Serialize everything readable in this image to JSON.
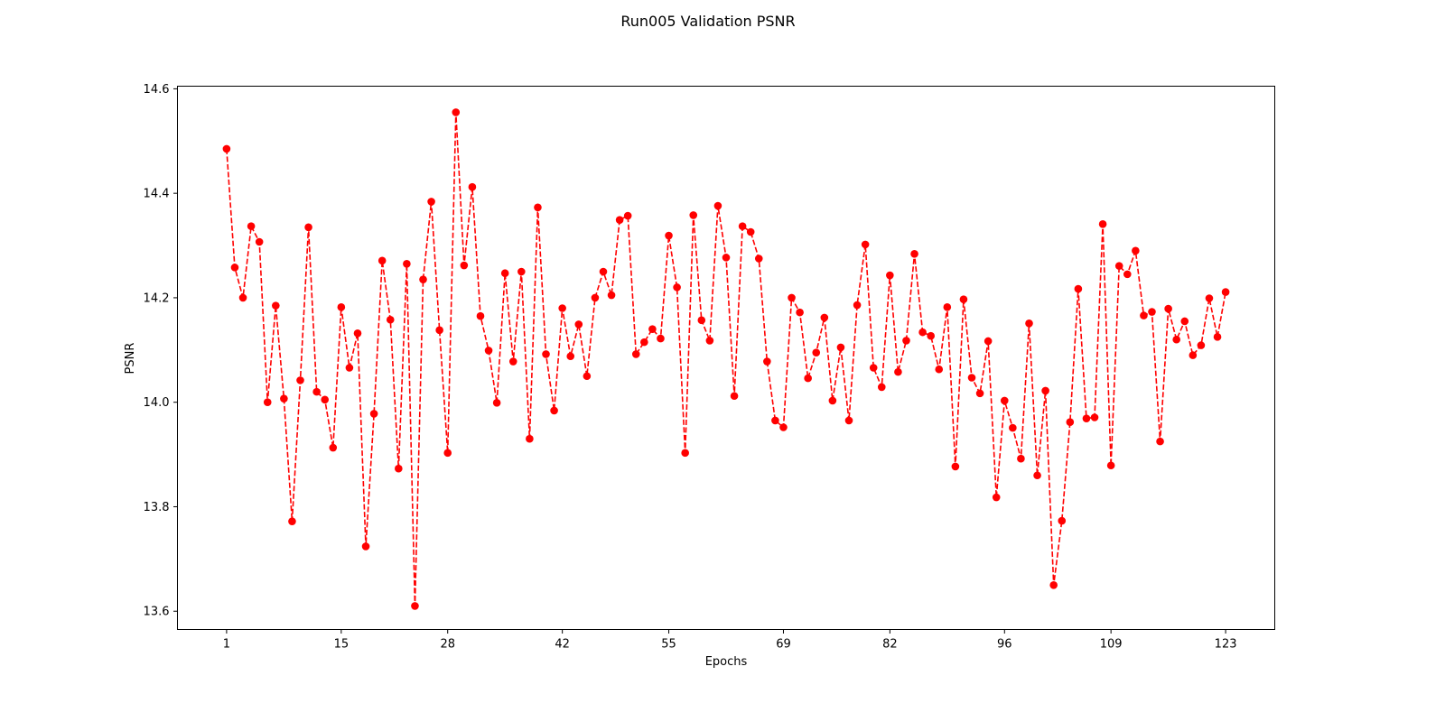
{
  "chart_data": {
    "type": "line",
    "title": "Run005 Validation PSNR",
    "xlabel": "Epochs",
    "ylabel": "PSNR",
    "xlim": [
      -5,
      129
    ],
    "ylim": [
      13.565,
      14.605
    ],
    "xticks": [
      1,
      15,
      28,
      42,
      55,
      69,
      82,
      96,
      109,
      123
    ],
    "yticks": [
      13.6,
      13.8,
      14.0,
      14.2,
      14.4,
      14.6
    ],
    "ytick_labels": [
      "13.6",
      "13.8",
      "14.0",
      "14.2",
      "14.4",
      "14.6"
    ],
    "grid": false,
    "series": [
      {
        "color": "#ff0000",
        "line_style": "dashed",
        "marker": "circle",
        "x": [
          1,
          2,
          3,
          4,
          5,
          6,
          7,
          8,
          9,
          10,
          11,
          12,
          13,
          14,
          15,
          16,
          17,
          18,
          19,
          20,
          21,
          22,
          23,
          24,
          25,
          26,
          27,
          28,
          29,
          30,
          31,
          32,
          33,
          34,
          35,
          36,
          37,
          38,
          39,
          40,
          41,
          42,
          43,
          44,
          45,
          46,
          47,
          48,
          49,
          50,
          51,
          52,
          53,
          54,
          55,
          56,
          57,
          58,
          59,
          60,
          61,
          62,
          63,
          64,
          65,
          66,
          67,
          68,
          69,
          70,
          71,
          72,
          73,
          74,
          75,
          76,
          77,
          78,
          79,
          80,
          81,
          82,
          83,
          84,
          85,
          86,
          87,
          88,
          89,
          90,
          91,
          92,
          93,
          94,
          95,
          96,
          97,
          98,
          99,
          100,
          101,
          102,
          103,
          104,
          105,
          106,
          107,
          108,
          109,
          110,
          111,
          112,
          113,
          114,
          115,
          116,
          117,
          118,
          119,
          120,
          121,
          122,
          123
        ],
        "y": [
          14.485,
          14.258,
          14.2,
          14.337,
          14.307,
          14.0,
          14.185,
          14.007,
          13.772,
          14.042,
          14.335,
          14.02,
          14.005,
          13.913,
          14.182,
          14.066,
          14.132,
          13.724,
          13.978,
          14.271,
          14.158,
          13.873,
          14.265,
          13.61,
          14.235,
          14.384,
          14.138,
          13.903,
          14.555,
          14.262,
          14.412,
          14.165,
          14.099,
          13.999,
          14.247,
          14.078,
          14.25,
          13.93,
          14.373,
          14.092,
          13.984,
          14.18,
          14.088,
          14.149,
          14.05,
          14.2,
          14.25,
          14.205,
          14.349,
          14.357,
          14.092,
          14.115,
          14.14,
          14.122,
          14.319,
          14.22,
          13.903,
          14.358,
          14.157,
          14.118,
          14.376,
          14.277,
          14.012,
          14.337,
          14.326,
          14.275,
          14.078,
          13.965,
          13.952,
          14.2,
          14.172,
          14.046,
          14.095,
          14.162,
          14.003,
          14.105,
          13.965,
          14.186,
          14.302,
          14.066,
          14.029,
          14.243,
          14.058,
          14.118,
          14.284,
          14.134,
          14.127,
          14.063,
          14.182,
          13.877,
          14.197,
          14.047,
          14.017,
          14.117,
          13.818,
          14.003,
          13.951,
          13.892,
          14.151,
          13.86,
          14.022,
          13.65,
          13.773,
          13.962,
          14.217,
          13.969,
          13.971,
          14.341,
          13.879,
          14.261,
          14.245,
          14.29,
          14.166,
          14.173,
          13.925,
          14.179,
          14.12,
          14.155,
          14.09,
          14.109,
          14.199,
          14.125,
          14.211
        ]
      }
    ]
  }
}
